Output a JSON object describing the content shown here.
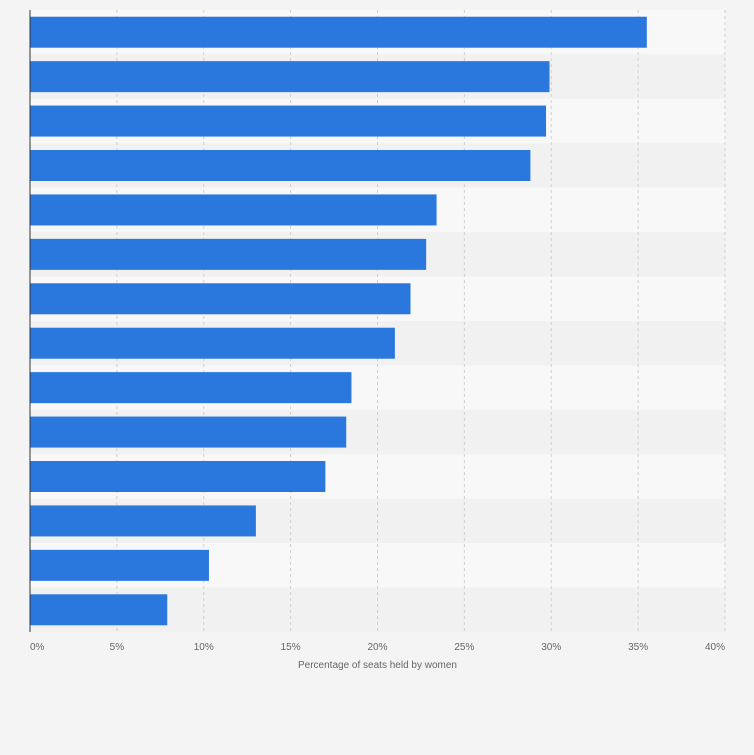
{
  "colors": {
    "background": "#f4f4f4",
    "band_light": "#f8f8f8",
    "band_dark": "#f1f1f1",
    "bar": "#2a77de",
    "gridline": "#cfcfcf",
    "axis_line": "#333333",
    "tick_text": "#666666"
  },
  "chart_data": {
    "type": "bar",
    "orientation": "horizontal",
    "title": "",
    "xlabel": "Percentage of seats held by women",
    "ylabel": "",
    "categories": [
      "",
      "",
      "",
      "",
      "",
      "",
      "",
      "",
      "",
      "",
      "",
      "",
      "",
      ""
    ],
    "values": [
      35.5,
      29.9,
      29.7,
      28.8,
      23.4,
      22.8,
      21.9,
      21.0,
      18.5,
      18.2,
      17.0,
      13.0,
      10.3,
      7.9
    ],
    "xlim": [
      0,
      40
    ],
    "x_ticks": [
      0,
      5,
      10,
      15,
      20,
      25,
      30,
      35,
      40
    ],
    "x_tick_labels": [
      "0%",
      "5%",
      "10%",
      "15%",
      "20%",
      "25%",
      "30%",
      "35%",
      "40%"
    ],
    "grid": true,
    "legend": "none"
  }
}
